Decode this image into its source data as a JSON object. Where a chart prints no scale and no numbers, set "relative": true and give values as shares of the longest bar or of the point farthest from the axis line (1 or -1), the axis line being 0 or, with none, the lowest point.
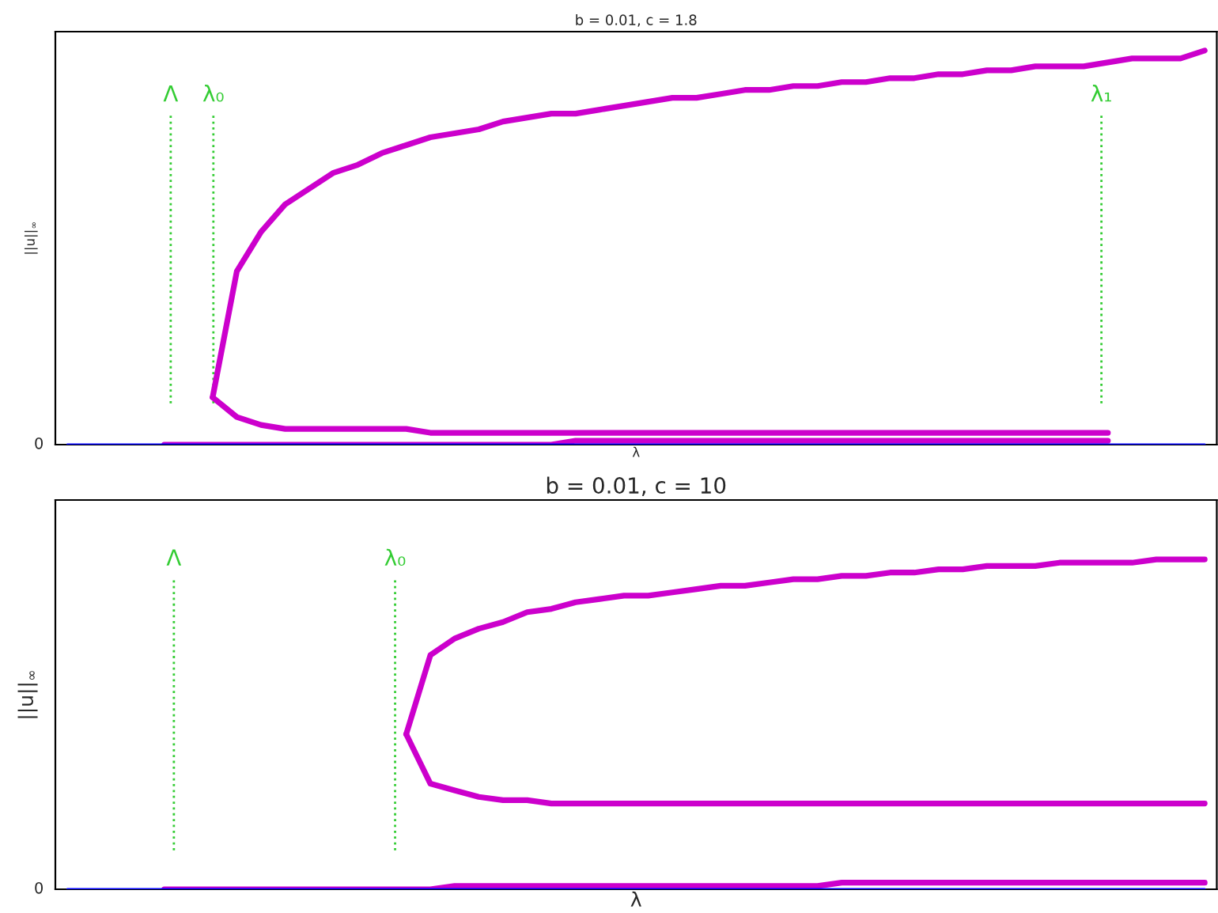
{
  "chart_data": [
    {
      "type": "line",
      "title": "b = 0.01, c = 1.8",
      "xlabel": "λ",
      "ylabel": "||u||$_{∞}$",
      "relative": true,
      "annotations": [
        "0",
        "Λ",
        "λ₀",
        "λ₁"
      ],
      "categories": [
        null,
        null,
        null,
        null,
        null,
        null,
        null,
        null,
        null,
        null,
        null,
        null,
        null,
        null,
        null,
        null,
        null,
        null,
        null,
        null,
        null,
        null,
        null,
        null,
        null,
        null,
        null,
        null,
        null,
        null,
        null,
        null,
        null,
        null,
        null,
        null,
        null,
        null,
        null,
        null,
        null,
        null,
        null,
        null,
        null,
        null,
        null,
        null
      ],
      "series": [
        {
          "color": "#0000ff",
          "values": [
            0,
            0,
            0,
            0,
            0,
            0,
            0,
            0,
            0,
            0,
            0,
            0,
            0,
            0,
            0,
            0,
            0,
            0,
            0,
            0,
            0,
            0,
            0,
            0,
            0,
            0,
            0,
            0,
            0,
            0,
            0,
            0,
            0,
            0,
            0,
            0,
            0,
            0,
            0,
            0,
            0,
            0,
            0,
            0,
            0,
            0,
            0,
            0
          ]
        },
        {
          "color": "#cc00cc",
          "values": [
            null,
            null,
            null,
            null,
            0,
            0,
            0,
            0,
            0,
            0,
            0,
            0,
            0,
            0,
            0,
            0,
            0,
            0,
            0,
            0,
            0,
            0.01,
            0.01,
            0.01,
            0.01,
            0.01,
            0.01,
            0.01,
            0.01,
            0.01,
            0.01,
            0.01,
            0.01,
            0.01,
            0.01,
            0.01,
            0.01,
            0.01,
            0.01,
            0.01,
            0.01,
            0.01,
            0.01,
            0.01,
            null,
            null,
            null,
            null
          ]
        },
        {
          "color": "#cc00cc",
          "values": [
            null,
            null,
            null,
            null,
            null,
            null,
            0.12,
            0.07,
            0.05,
            0.04,
            0.04,
            0.04,
            0.04,
            0.04,
            0.04,
            0.03,
            0.03,
            0.03,
            0.03,
            0.03,
            0.03,
            0.03,
            0.03,
            0.03,
            0.03,
            0.03,
            0.03,
            0.03,
            0.03,
            0.03,
            0.03,
            0.03,
            0.03,
            0.03,
            0.03,
            0.03,
            0.03,
            0.03,
            0.03,
            0.03,
            0.03,
            0.03,
            0.03,
            0.03,
            null,
            null,
            null,
            null
          ]
        },
        {
          "color": "#cc00cc",
          "values": [
            null,
            null,
            null,
            null,
            null,
            null,
            0.12,
            0.44,
            0.54,
            0.61,
            0.65,
            0.69,
            0.71,
            0.74,
            0.76,
            0.78,
            0.79,
            0.8,
            0.82,
            0.83,
            0.84,
            0.84,
            0.85,
            0.86,
            0.87,
            0.88,
            0.88,
            0.89,
            0.9,
            0.9,
            0.91,
            0.91,
            0.92,
            0.92,
            0.93,
            0.93,
            0.94,
            0.94,
            0.95,
            0.95,
            0.96,
            0.96,
            0.96,
            0.97,
            0.98,
            0.98,
            0.98,
            1
          ]
        }
      ]
    },
    {
      "type": "line",
      "title": "b = 0.01, c = 10",
      "xlabel": "λ",
      "ylabel": "||u||$_{∞}$",
      "relative": true,
      "annotations": [
        "0",
        "Λ",
        "λ₀"
      ],
      "categories": [
        null,
        null,
        null,
        null,
        null,
        null,
        null,
        null,
        null,
        null,
        null,
        null,
        null,
        null,
        null,
        null,
        null,
        null,
        null,
        null,
        null,
        null,
        null,
        null,
        null,
        null,
        null,
        null,
        null,
        null,
        null,
        null,
        null,
        null,
        null,
        null,
        null,
        null,
        null,
        null,
        null,
        null,
        null,
        null,
        null,
        null,
        null,
        null
      ],
      "series": [
        {
          "color": "#0000ff",
          "values": [
            0,
            0,
            0,
            0,
            0,
            0,
            0,
            0,
            0,
            0,
            0,
            0,
            0,
            0,
            0,
            0,
            0,
            0,
            0,
            0,
            0,
            0,
            0,
            0,
            0,
            0,
            0,
            0,
            0,
            0,
            0,
            0,
            0,
            0,
            0,
            0,
            0,
            0,
            0,
            0,
            0,
            0,
            0,
            0,
            0,
            0,
            0,
            0
          ]
        },
        {
          "color": "#cc00cc",
          "values": [
            null,
            null,
            null,
            null,
            0,
            0,
            0,
            0,
            0,
            0,
            0,
            0,
            0,
            0,
            0,
            0,
            0.01,
            0.01,
            0.01,
            0.01,
            0.01,
            0.01,
            0.01,
            0.01,
            0.01,
            0.01,
            0.01,
            0.01,
            0.01,
            0.01,
            0.01,
            0.01,
            0.02,
            0.02,
            0.02,
            0.02,
            0.02,
            0.02,
            0.02,
            0.02,
            0.02,
            0.02,
            0.02,
            0.02,
            0.02,
            0.02,
            0.02,
            0.02
          ]
        },
        {
          "color": "#cc00cc",
          "values": [
            null,
            null,
            null,
            null,
            null,
            null,
            null,
            null,
            null,
            null,
            null,
            null,
            null,
            null,
            0.47,
            0.32,
            0.3,
            0.28,
            0.27,
            0.27,
            0.26,
            0.26,
            0.26,
            0.26,
            0.26,
            0.26,
            0.26,
            0.26,
            0.26,
            0.26,
            0.26,
            0.26,
            0.26,
            0.26,
            0.26,
            0.26,
            0.26,
            0.26,
            0.26,
            0.26,
            0.26,
            0.26,
            0.26,
            0.26,
            0.26,
            0.26,
            0.26,
            0.26
          ]
        },
        {
          "color": "#cc00cc",
          "values": [
            null,
            null,
            null,
            null,
            null,
            null,
            null,
            null,
            null,
            null,
            null,
            null,
            null,
            null,
            0.47,
            0.71,
            0.76,
            0.79,
            0.81,
            0.84,
            0.85,
            0.87,
            0.88,
            0.89,
            0.89,
            0.9,
            0.91,
            0.92,
            0.92,
            0.93,
            0.94,
            0.94,
            0.95,
            0.95,
            0.96,
            0.96,
            0.97,
            0.97,
            0.98,
            0.98,
            0.98,
            0.99,
            0.99,
            0.99,
            0.99,
            1,
            1,
            1
          ]
        }
      ]
    }
  ]
}
